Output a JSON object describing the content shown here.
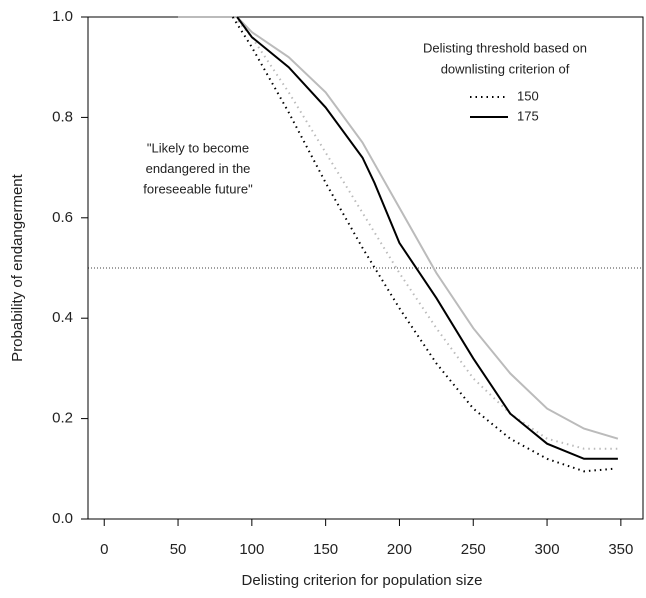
{
  "chart_data": {
    "type": "line",
    "xlabel": "Delisting criterion for population size",
    "ylabel": "Probability of endangerment",
    "xlim": [
      -11,
      365
    ],
    "ylim": [
      0,
      1
    ],
    "xticks": [
      0,
      50,
      100,
      150,
      200,
      250,
      300,
      350
    ],
    "yticks": [
      {
        "value": 0,
        "label": "0.0"
      },
      0.2,
      0.4,
      0.6,
      0.8,
      {
        "value": 1,
        "label": "1.0"
      }
    ],
    "hline": 0.5,
    "annotation": [
      "\"Likely to become",
      "endangered in the",
      "foreseeable future\""
    ],
    "legend_title": [
      "Delisting threshold based on",
      "downlisting criterion of"
    ],
    "series": [
      {
        "color": "#bbbbbb",
        "dash": false,
        "x": [
          50,
          90,
          100,
          125,
          150,
          175,
          200,
          225,
          250,
          275,
          300,
          325,
          348
        ],
        "values": [
          1.0,
          1.0,
          0.97,
          0.92,
          0.85,
          0.75,
          0.62,
          0.49,
          0.38,
          0.29,
          0.22,
          0.18,
          0.16
        ]
      },
      {
        "color": "#bbbbbb",
        "dash": true,
        "x": [
          88,
          100,
          125,
          150,
          175,
          200,
          225,
          250,
          275,
          300,
          325,
          348
        ],
        "values": [
          1.0,
          0.96,
          0.85,
          0.73,
          0.61,
          0.49,
          0.38,
          0.28,
          0.21,
          0.16,
          0.14,
          0.14
        ]
      },
      {
        "name": "150",
        "color": "#000000",
        "dash": true,
        "x": [
          87,
          100,
          125,
          150,
          175,
          200,
          225,
          250,
          275,
          300,
          325,
          345
        ],
        "values": [
          1.0,
          0.94,
          0.81,
          0.67,
          0.54,
          0.42,
          0.31,
          0.22,
          0.16,
          0.12,
          0.095,
          0.1
        ]
      },
      {
        "name": "175",
        "color": "#000000",
        "dash": false,
        "x": [
          90,
          100,
          125,
          150,
          175,
          183,
          200,
          225,
          250,
          275,
          300,
          325,
          348
        ],
        "values": [
          1.0,
          0.96,
          0.9,
          0.82,
          0.72,
          0.67,
          0.55,
          0.44,
          0.32,
          0.21,
          0.15,
          0.12,
          0.12
        ]
      }
    ]
  }
}
